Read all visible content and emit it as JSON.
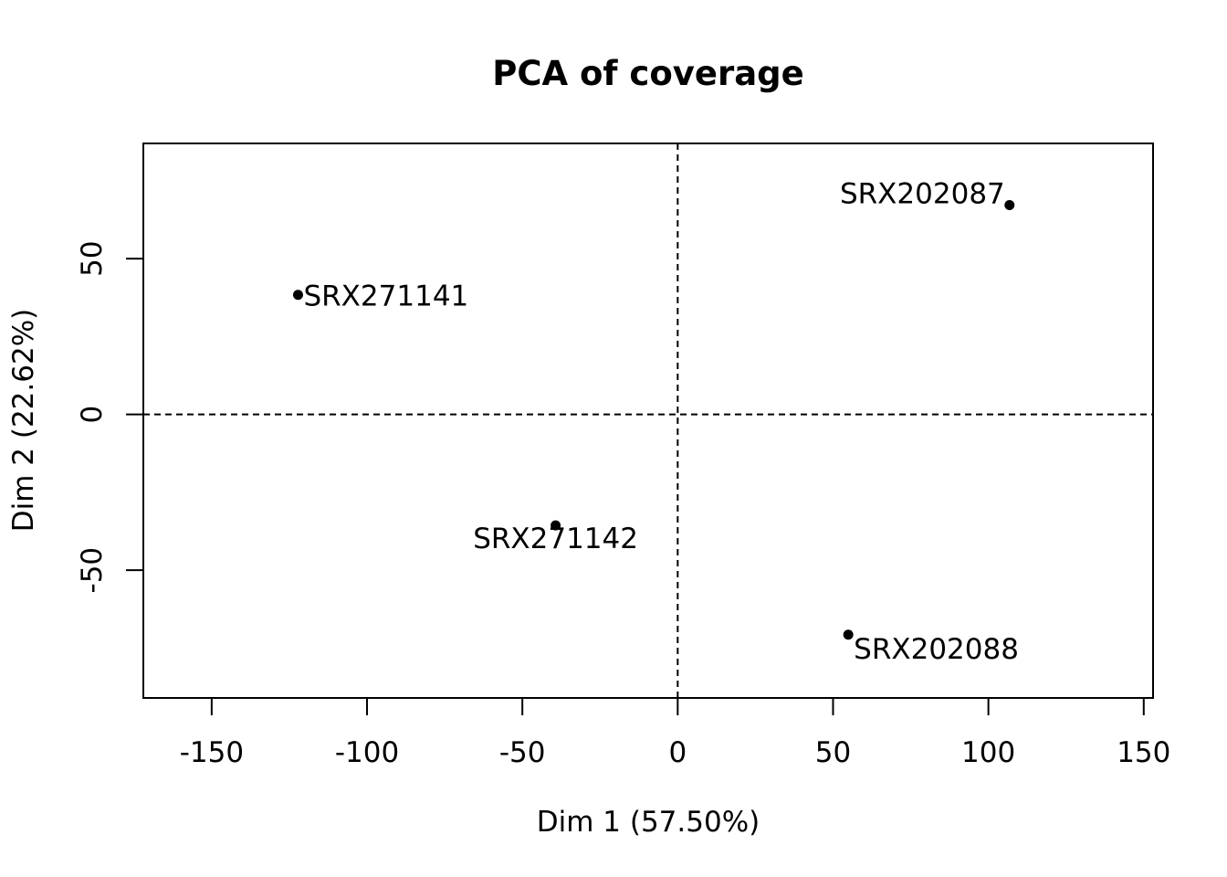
{
  "chart_data": {
    "type": "scatter",
    "title": "PCA of coverage",
    "xlabel": "Dim 1 (57.50%)",
    "ylabel": "Dim 2 (22.62%)",
    "xlim": [
      -172,
      153
    ],
    "ylim": [
      -91,
      87
    ],
    "xticks": [
      -150,
      -100,
      -50,
      0,
      50,
      100,
      150
    ],
    "yticks": [
      -50,
      0,
      50
    ],
    "reference_lines": {
      "x": 0,
      "y": 0,
      "style": "dashed"
    },
    "points": [
      {
        "label": "SRX202087",
        "x": 106.8,
        "y": 67.2,
        "label_pos": "left"
      },
      {
        "label": "SRX271141",
        "x": -122.2,
        "y": 38.4,
        "label_pos": "right"
      },
      {
        "label": "SRX271142",
        "x": -39.3,
        "y": -35.6,
        "label_pos": "below"
      },
      {
        "label": "SRX202088",
        "x": 54.9,
        "y": -70.7,
        "label_pos": "below-right"
      }
    ],
    "grid": false,
    "legend": false
  }
}
